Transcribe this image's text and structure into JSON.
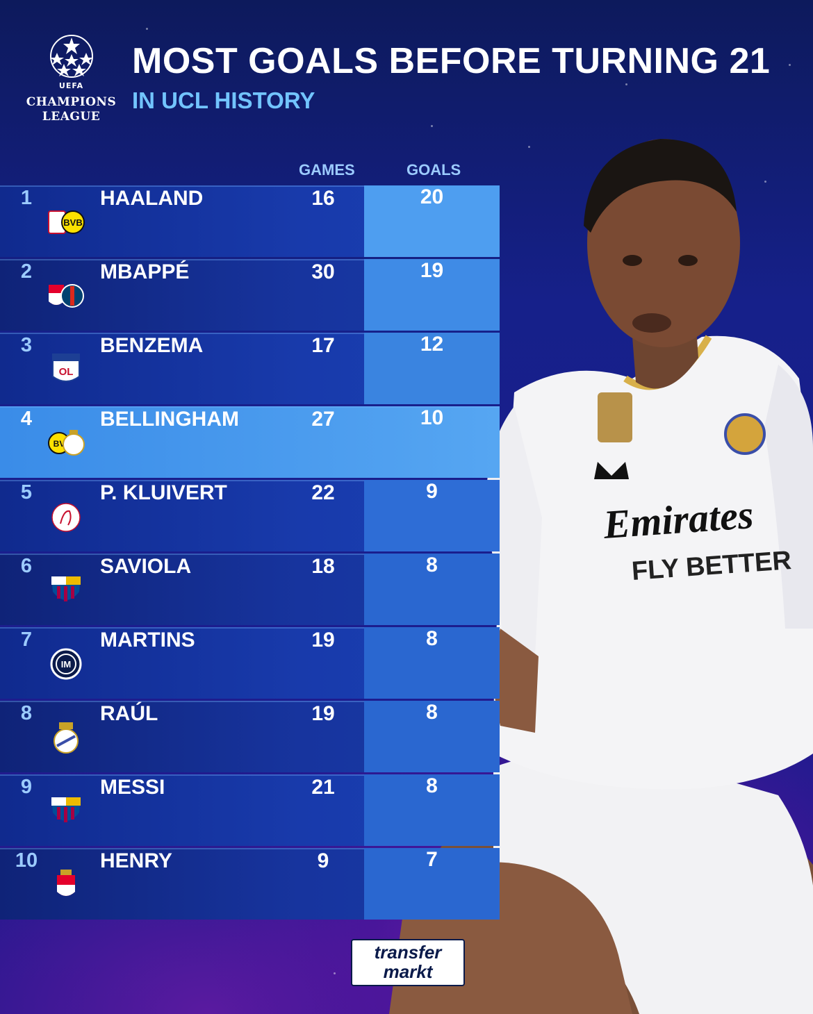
{
  "header": {
    "logo_uefa": "UEFA",
    "logo_line1": "CHAMPIONS",
    "logo_line2": "LEAGUE",
    "title": "MOST GOALS BEFORE TURNING 21",
    "subtitle": "IN UCL HISTORY"
  },
  "columns": {
    "games": "GAMES",
    "goals": "GOALS"
  },
  "rows": [
    {
      "rank": "1",
      "name": "HAALAND",
      "games": "16",
      "goals": "20",
      "crest": "salzburg-dortmund-crest"
    },
    {
      "rank": "2",
      "name": "MBAPPÉ",
      "games": "30",
      "goals": "19",
      "crest": "monaco-psg-crest"
    },
    {
      "rank": "3",
      "name": "BENZEMA",
      "games": "17",
      "goals": "12",
      "crest": "lyon-crest"
    },
    {
      "rank": "4",
      "name": "BELLINGHAM",
      "games": "27",
      "goals": "10",
      "crest": "dortmund-realmadrid-crest"
    },
    {
      "rank": "5",
      "name": "P. KLUIVERT",
      "games": "22",
      "goals": "9",
      "crest": "ajax-crest"
    },
    {
      "rank": "6",
      "name": "SAVIOLA",
      "games": "18",
      "goals": "8",
      "crest": "barcelona-crest"
    },
    {
      "rank": "7",
      "name": "MARTINS",
      "games": "19",
      "goals": "8",
      "crest": "inter-crest"
    },
    {
      "rank": "8",
      "name": "RAÚL",
      "games": "19",
      "goals": "8",
      "crest": "realmadrid-crest"
    },
    {
      "rank": "9",
      "name": "MESSI",
      "games": "21",
      "goals": "8",
      "crest": "barcelona-crest"
    },
    {
      "rank": "10",
      "name": "HENRY",
      "games": "9",
      "goals": "7",
      "crest": "monaco-crest"
    }
  ],
  "sponsor": {
    "line1": "transfer",
    "line2": "markt"
  },
  "colors": {
    "background": "#16208a",
    "accent": "#72c4ff",
    "highlight": "#4ea0f0"
  }
}
